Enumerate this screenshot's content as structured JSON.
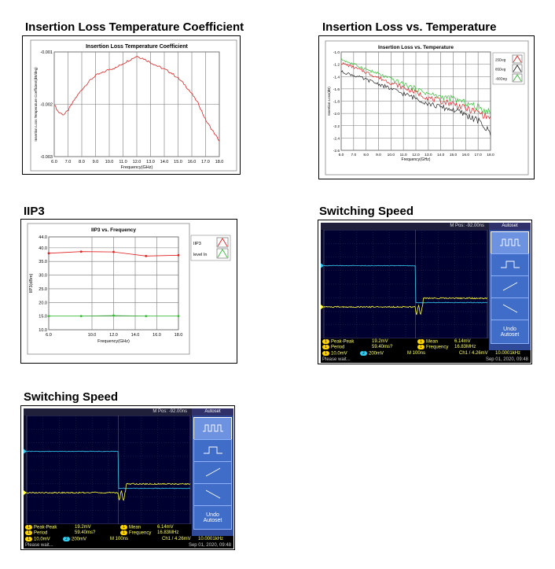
{
  "sections": {
    "s1": "Insertion Loss Temperature Coefficient",
    "s2": "Insertion Loss vs. Temperature",
    "s3": "IIP3",
    "s4": "Switching Speed",
    "s5": "Switching Speed"
  },
  "chart_data": [
    {
      "type": "line",
      "title": "Insertion Loss Temperature Coefficient",
      "xlabel": "Frequency(GHz)",
      "ylabel": "Insertion Loss Temperature Coefficient(dB/deg)",
      "xlim": [
        6.0,
        18.0
      ],
      "ylim": [
        -0.003,
        -0.001
      ],
      "xticks": [
        "6.0",
        "7.0",
        "8.0",
        "9.0",
        "10.0",
        "11.0",
        "12.0",
        "13.0",
        "14.0",
        "15.0",
        "16.0",
        "17.0",
        "18.0"
      ],
      "yticks": [
        "-0.001",
        "-0.002",
        "-0.003"
      ],
      "grid": true,
      "series": [
        {
          "color": "#e02020",
          "x": [
            6.0,
            6.3,
            6.7,
            7.0,
            7.5,
            8.0,
            8.5,
            9.0,
            9.5,
            10.0,
            10.5,
            11.0,
            11.5,
            12.0,
            12.5,
            13.0,
            13.5,
            14.0,
            14.5,
            15.0,
            15.5,
            16.0,
            16.5,
            17.0,
            17.5,
            18.0
          ],
          "y": [
            -0.002,
            -0.00215,
            -0.0022,
            -0.00212,
            -0.0019,
            -0.00172,
            -0.00157,
            -0.00145,
            -0.0014,
            -0.00133,
            -0.0013,
            -0.00122,
            -0.00115,
            -0.00108,
            -0.00113,
            -0.0012,
            -0.00127,
            -0.00133,
            -0.0014,
            -0.0015,
            -0.00163,
            -0.0018,
            -0.002,
            -0.0023,
            -0.0025,
            -0.0027
          ]
        }
      ]
    },
    {
      "type": "line",
      "title": "Insertion Loss vs. Temperature",
      "xlabel": "Frequency(GHz)",
      "ylabel": "Insertion Loss(dB)",
      "xlim": [
        6.0,
        18.0
      ],
      "ylim": [
        -2.6,
        -1.0
      ],
      "xticks": [
        "6.0",
        "7.0",
        "8.0",
        "9.0",
        "10.0",
        "11.0",
        "12.0",
        "13.0",
        "14.0",
        "15.0",
        "16.0",
        "17.0",
        "18.0"
      ],
      "yticks": [
        "-1.0",
        "-1.2",
        "-1.4",
        "-1.6",
        "-1.8",
        "-2.0",
        "-2.2",
        "-2.4",
        "-2.6"
      ],
      "grid": true,
      "legend": "right",
      "series": [
        {
          "name": "25Deg",
          "color": "#e02020",
          "x": [
            6,
            7,
            8,
            9,
            10,
            11,
            12,
            13,
            14,
            15,
            16,
            17,
            18
          ],
          "y": [
            -1.18,
            -1.25,
            -1.33,
            -1.42,
            -1.5,
            -1.58,
            -1.66,
            -1.75,
            -1.8,
            -1.84,
            -1.92,
            -1.98,
            -2.08
          ]
        },
        {
          "name": "85Deg",
          "color": "#222222",
          "x": [
            6,
            7,
            8,
            9,
            10,
            11,
            12,
            13,
            14,
            15,
            16,
            17,
            18
          ],
          "y": [
            -1.32,
            -1.38,
            -1.45,
            -1.52,
            -1.6,
            -1.68,
            -1.75,
            -1.84,
            -1.9,
            -1.94,
            -2.02,
            -2.12,
            -2.32
          ]
        },
        {
          "name": "-60Deg",
          "color": "#30c030",
          "x": [
            6,
            7,
            8,
            9,
            10,
            11,
            12,
            13,
            14,
            15,
            16,
            17,
            18
          ],
          "y": [
            -1.12,
            -1.2,
            -1.28,
            -1.36,
            -1.44,
            -1.52,
            -1.6,
            -1.68,
            -1.73,
            -1.76,
            -1.83,
            -1.9,
            -1.98
          ]
        }
      ]
    },
    {
      "type": "line",
      "title": "IIP3 vs. Frequency",
      "xlabel": "Frequency(GHz)",
      "ylabel": "IIP3(dBm)",
      "xlim": [
        6.0,
        18.0
      ],
      "ylim": [
        10.0,
        44.0
      ],
      "xticks": [
        "6.0",
        "10.0",
        "12.0",
        "14.0",
        "16.0",
        "18.0"
      ],
      "yticks": [
        "10.0",
        "15.0",
        "20.0",
        "25.0",
        "30.0",
        "35.0",
        "40.0",
        "44.0"
      ],
      "grid": true,
      "legend": "right",
      "series": [
        {
          "name": "IIP3",
          "color": "#e02020",
          "x": [
            6,
            9,
            12,
            15,
            18
          ],
          "y": [
            38.0,
            38.6,
            38.5,
            37.0,
            37.3
          ]
        },
        {
          "name": "level In",
          "color": "#30c030",
          "x": [
            6,
            9,
            12,
            15,
            18
          ],
          "y": [
            15.0,
            15.0,
            15.2,
            15.0,
            15.0
          ]
        }
      ]
    }
  ],
  "scope": {
    "mpos": "M Pos: -92.00ns",
    "side_header": "Autoset",
    "undo_line1": "Undo",
    "undo_line2": "Autoset",
    "pk_label": "Peak-Peak",
    "pk_val": "19.2mV",
    "per_label": "Period",
    "per_val": "59.40ms?",
    "mean_label": "Mean",
    "mean_val": "6.14mV",
    "freq_label": "Frequency",
    "freq_val": "16.83MHz",
    "ch1_scale": "10.0mV",
    "ch2_scale": "200mV",
    "timebase": "M 100ns",
    "trigger": "Ch1 / 4.26mV",
    "trig_freq": "10.0001kHz",
    "status": "Please wait...",
    "date": "Sep 01, 2020, 09:48",
    "ch1_color": "#ffff33",
    "ch2_color": "#33ccee"
  }
}
